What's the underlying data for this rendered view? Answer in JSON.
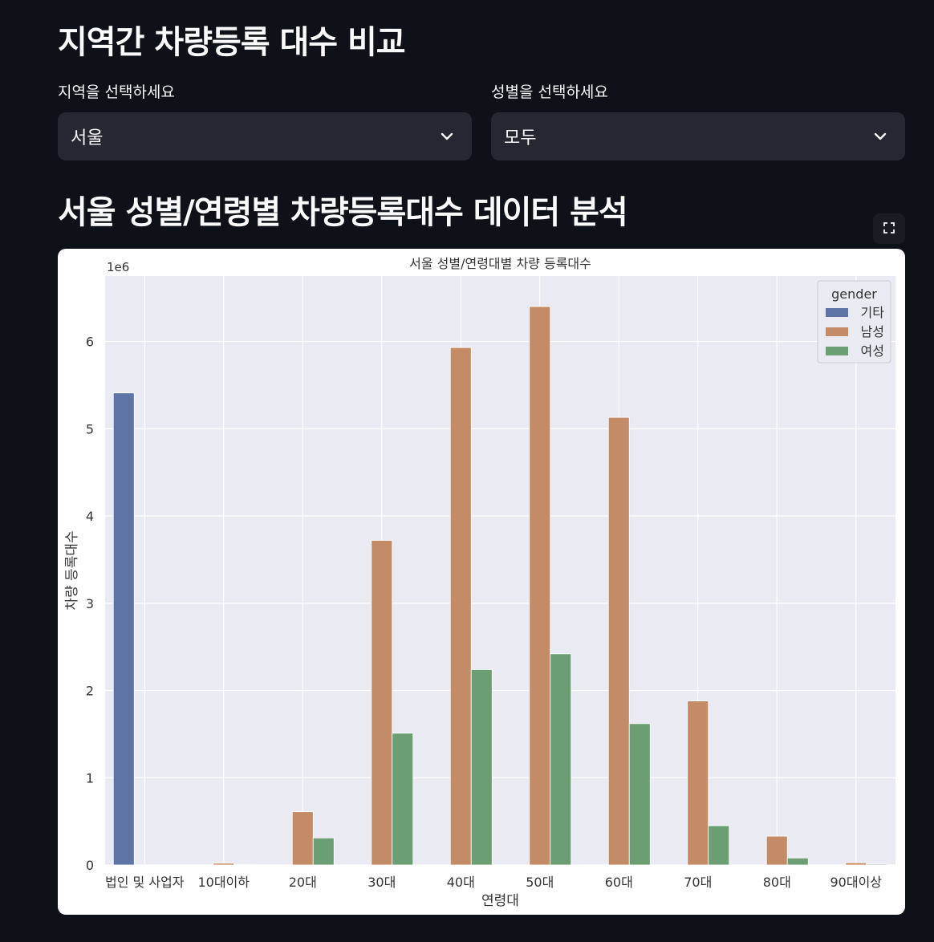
{
  "page": {
    "title": "지역간 차량등록 대수 비교",
    "section_title": "서울 성별/연령별 차량등록대수 데이터 분석"
  },
  "region_select": {
    "label": "지역을 선택하세요",
    "value": "서울"
  },
  "gender_select": {
    "label": "성별을 선택하세요",
    "value": "모두"
  },
  "icons": {
    "dropdown": "chevron-down-icon",
    "fullscreen": "fullscreen-icon"
  },
  "chart_data": {
    "type": "bar",
    "title": "서울 성별/연령대별 차량 등록대수",
    "xlabel": "연령대",
    "ylabel": "차량 등록대수",
    "y_multiplier_label": "1e6",
    "ylim": [
      0,
      6.75
    ],
    "yticks": [
      "0",
      "1",
      "2",
      "3",
      "4",
      "5",
      "6"
    ],
    "grid": true,
    "legend_title": "gender",
    "legend_position": "top-right",
    "categories": [
      "법인 및 사업자",
      "10대이하",
      "20대",
      "30대",
      "40대",
      "50대",
      "60대",
      "70대",
      "80대",
      "90대이상"
    ],
    "series": [
      {
        "name": "기타",
        "color": "#5e74a6",
        "values": [
          5.41,
          0,
          0,
          0,
          0,
          0,
          0,
          0,
          0,
          0
        ]
      },
      {
        "name": "남성",
        "color": "#c48b67",
        "values": [
          0,
          0.02,
          0.61,
          3.72,
          5.93,
          6.4,
          5.13,
          1.88,
          0.33,
          0.025
        ]
      },
      {
        "name": "여성",
        "color": "#6b9e72",
        "values": [
          0,
          0.008,
          0.31,
          1.51,
          2.24,
          2.42,
          1.62,
          0.45,
          0.08,
          0.01
        ]
      }
    ]
  }
}
